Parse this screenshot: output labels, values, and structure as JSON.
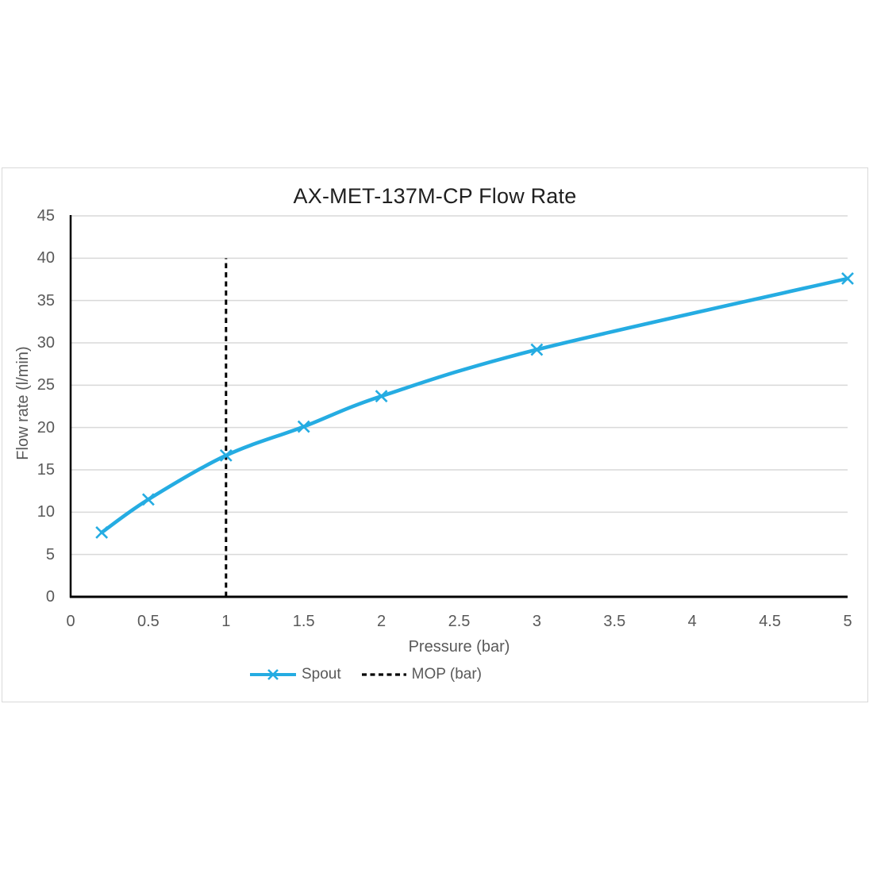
{
  "chart_data": {
    "type": "line",
    "title": "AX-MET-137M-CP Flow Rate",
    "xlabel": "Pressure (bar)",
    "ylabel": "Flow rate (l/min)",
    "xlim": [
      0,
      5
    ],
    "ylim": [
      0,
      45
    ],
    "x_tick_labels": [
      "0",
      "0.5",
      "1",
      "1.5",
      "2",
      "2.5",
      "3",
      "3.5",
      "4",
      "4.5",
      "5"
    ],
    "y_tick_labels": [
      "0",
      "5",
      "10",
      "15",
      "20",
      "25",
      "30",
      "35",
      "40",
      "45"
    ],
    "grid": "horizontal",
    "legend_position": "bottom",
    "series": [
      {
        "name": "Spout",
        "type": "smooth-line",
        "marker": "x",
        "color": "#25ace2",
        "x": [
          0.2,
          0.5,
          1.0,
          1.5,
          2.0,
          3.0,
          5.0
        ],
        "y": [
          7.6,
          11.5,
          16.7,
          20.1,
          23.7,
          29.2,
          37.6
        ]
      },
      {
        "name": "MOP (bar)",
        "type": "vertical-dashed-line",
        "color": "#000000",
        "x": 1.0,
        "y_from": 0,
        "y_to": 40
      }
    ],
    "colors": {
      "accent": "#25ace2",
      "axis": "#000000",
      "gridline": "#d9d9d9",
      "tick_text": "#595959",
      "title_text": "#1f1f1f",
      "frame_border": "#d9d9d9"
    }
  },
  "legend": {
    "items": [
      {
        "label": "Spout"
      },
      {
        "label": "MOP (bar)"
      }
    ]
  }
}
